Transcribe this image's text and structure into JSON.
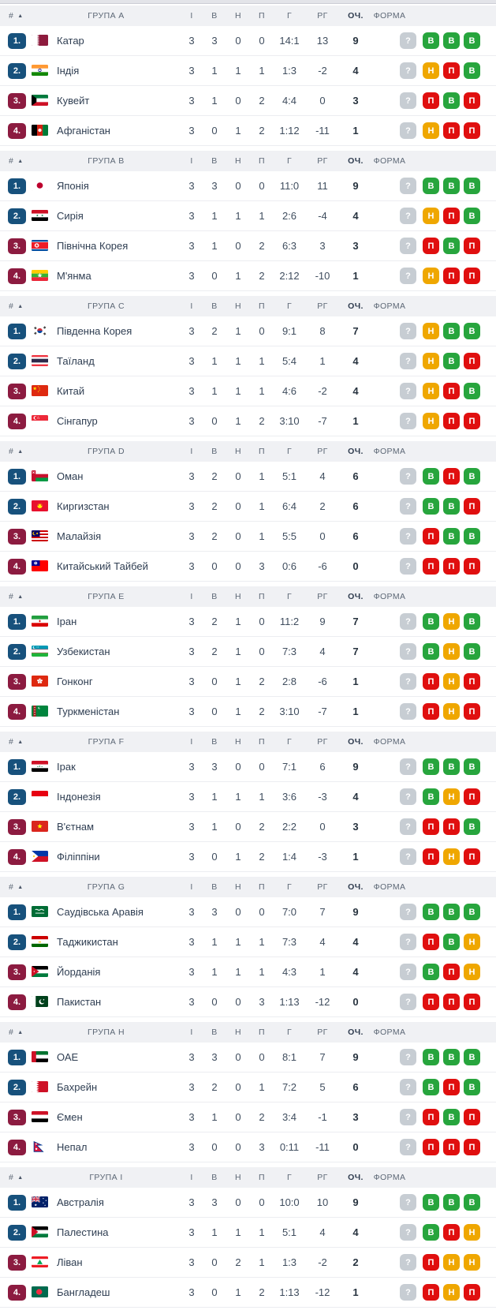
{
  "widget": {
    "type": "football-group-standings"
  },
  "columns": {
    "pos": "#",
    "sort_icon": "▲",
    "played": "І",
    "wins": "В",
    "draws": "Н",
    "losses": "П",
    "goals": "Г",
    "diff": "РГ",
    "points": "ОЧ.",
    "form": "ФОРМА"
  },
  "form_legend": {
    "win": "В",
    "draw": "Н",
    "loss": "П",
    "unknown": "?"
  },
  "colors": {
    "promotion": "#17517c",
    "relegation": "#8c1b40",
    "win": "#27a53d",
    "draw": "#efa700",
    "loss": "#e00f0f",
    "unknown": "#c7cdd3",
    "header_bg": "#f0f1f4",
    "row_border": "#ecedf1",
    "text_primary": "#2f3e52",
    "text_secondary": "#5d6876"
  },
  "groups": [
    {
      "label": "ГРУПА A",
      "teams": [
        {
          "pos": "1.",
          "zone": "promotion",
          "flag": "qatar",
          "name": "Катар",
          "played": "3",
          "wins": "3",
          "draws": "0",
          "losses": "0",
          "goals": "14:1",
          "diff": "13",
          "points": "9",
          "form": [
            "?",
            "В",
            "В",
            "В"
          ]
        },
        {
          "pos": "2.",
          "zone": "promotion",
          "flag": "india",
          "name": "Індія",
          "played": "3",
          "wins": "1",
          "draws": "1",
          "losses": "1",
          "goals": "1:3",
          "diff": "-2",
          "points": "4",
          "form": [
            "?",
            "Н",
            "П",
            "В"
          ]
        },
        {
          "pos": "3.",
          "zone": "relegation",
          "flag": "kuwait",
          "name": "Кувейт",
          "played": "3",
          "wins": "1",
          "draws": "0",
          "losses": "2",
          "goals": "4:4",
          "diff": "0",
          "points": "3",
          "form": [
            "?",
            "П",
            "В",
            "П"
          ]
        },
        {
          "pos": "4.",
          "zone": "relegation",
          "flag": "afghanistan",
          "name": "Афганістан",
          "played": "3",
          "wins": "0",
          "draws": "1",
          "losses": "2",
          "goals": "1:12",
          "diff": "-11",
          "points": "1",
          "form": [
            "?",
            "Н",
            "П",
            "П"
          ]
        }
      ]
    },
    {
      "label": "ГРУПА B",
      "teams": [
        {
          "pos": "1.",
          "zone": "promotion",
          "flag": "japan",
          "name": "Японія",
          "played": "3",
          "wins": "3",
          "draws": "0",
          "losses": "0",
          "goals": "11:0",
          "diff": "11",
          "points": "9",
          "form": [
            "?",
            "В",
            "В",
            "В"
          ]
        },
        {
          "pos": "2.",
          "zone": "promotion",
          "flag": "syria",
          "name": "Сирія",
          "played": "3",
          "wins": "1",
          "draws": "1",
          "losses": "1",
          "goals": "2:6",
          "diff": "-4",
          "points": "4",
          "form": [
            "?",
            "Н",
            "П",
            "В"
          ]
        },
        {
          "pos": "3.",
          "zone": "relegation",
          "flag": "northkorea",
          "name": "Північна Корея",
          "played": "3",
          "wins": "1",
          "draws": "0",
          "losses": "2",
          "goals": "6:3",
          "diff": "3",
          "points": "3",
          "form": [
            "?",
            "П",
            "В",
            "П"
          ]
        },
        {
          "pos": "4.",
          "zone": "relegation",
          "flag": "myanmar",
          "name": "М'янма",
          "played": "3",
          "wins": "0",
          "draws": "1",
          "losses": "2",
          "goals": "2:12",
          "diff": "-10",
          "points": "1",
          "form": [
            "?",
            "Н",
            "П",
            "П"
          ]
        }
      ]
    },
    {
      "label": "ГРУПА C",
      "teams": [
        {
          "pos": "1.",
          "zone": "promotion",
          "flag": "southkorea",
          "name": "Південна Корея",
          "played": "3",
          "wins": "2",
          "draws": "1",
          "losses": "0",
          "goals": "9:1",
          "diff": "8",
          "points": "7",
          "form": [
            "?",
            "Н",
            "В",
            "В"
          ]
        },
        {
          "pos": "2.",
          "zone": "promotion",
          "flag": "thailand",
          "name": "Таїланд",
          "played": "3",
          "wins": "1",
          "draws": "1",
          "losses": "1",
          "goals": "5:4",
          "diff": "1",
          "points": "4",
          "form": [
            "?",
            "Н",
            "В",
            "П"
          ]
        },
        {
          "pos": "3.",
          "zone": "relegation",
          "flag": "china",
          "name": "Китай",
          "played": "3",
          "wins": "1",
          "draws": "1",
          "losses": "1",
          "goals": "4:6",
          "diff": "-2",
          "points": "4",
          "form": [
            "?",
            "Н",
            "П",
            "В"
          ]
        },
        {
          "pos": "4.",
          "zone": "relegation",
          "flag": "singapore",
          "name": "Сінгапур",
          "played": "3",
          "wins": "0",
          "draws": "1",
          "losses": "2",
          "goals": "3:10",
          "diff": "-7",
          "points": "1",
          "form": [
            "?",
            "Н",
            "П",
            "П"
          ]
        }
      ]
    },
    {
      "label": "ГРУПА D",
      "teams": [
        {
          "pos": "1.",
          "zone": "promotion",
          "flag": "oman",
          "name": "Оман",
          "played": "3",
          "wins": "2",
          "draws": "0",
          "losses": "1",
          "goals": "5:1",
          "diff": "4",
          "points": "6",
          "form": [
            "?",
            "В",
            "П",
            "В"
          ]
        },
        {
          "pos": "2.",
          "zone": "promotion",
          "flag": "kyrgyzstan",
          "name": "Киргизстан",
          "played": "3",
          "wins": "2",
          "draws": "0",
          "losses": "1",
          "goals": "6:4",
          "diff": "2",
          "points": "6",
          "form": [
            "?",
            "В",
            "В",
            "П"
          ]
        },
        {
          "pos": "3.",
          "zone": "relegation",
          "flag": "malaysia",
          "name": "Малайзія",
          "played": "3",
          "wins": "2",
          "draws": "0",
          "losses": "1",
          "goals": "5:5",
          "diff": "0",
          "points": "6",
          "form": [
            "?",
            "П",
            "В",
            "В"
          ]
        },
        {
          "pos": "4.",
          "zone": "relegation",
          "flag": "taiwan",
          "name": "Китайський Тайбей",
          "played": "3",
          "wins": "0",
          "draws": "0",
          "losses": "3",
          "goals": "0:6",
          "diff": "-6",
          "points": "0",
          "form": [
            "?",
            "П",
            "П",
            "П"
          ]
        }
      ]
    },
    {
      "label": "ГРУПА E",
      "teams": [
        {
          "pos": "1.",
          "zone": "promotion",
          "flag": "iran",
          "name": "Іран",
          "played": "3",
          "wins": "2",
          "draws": "1",
          "losses": "0",
          "goals": "11:2",
          "diff": "9",
          "points": "7",
          "form": [
            "?",
            "В",
            "Н",
            "В"
          ]
        },
        {
          "pos": "2.",
          "zone": "promotion",
          "flag": "uzbekistan",
          "name": "Узбекистан",
          "played": "3",
          "wins": "2",
          "draws": "1",
          "losses": "0",
          "goals": "7:3",
          "diff": "4",
          "points": "7",
          "form": [
            "?",
            "В",
            "Н",
            "В"
          ]
        },
        {
          "pos": "3.",
          "zone": "relegation",
          "flag": "hongkong",
          "name": "Гонконг",
          "played": "3",
          "wins": "0",
          "draws": "1",
          "losses": "2",
          "goals": "2:8",
          "diff": "-6",
          "points": "1",
          "form": [
            "?",
            "П",
            "Н",
            "П"
          ]
        },
        {
          "pos": "4.",
          "zone": "relegation",
          "flag": "turkmenistan",
          "name": "Туркменістан",
          "played": "3",
          "wins": "0",
          "draws": "1",
          "losses": "2",
          "goals": "3:10",
          "diff": "-7",
          "points": "1",
          "form": [
            "?",
            "П",
            "Н",
            "П"
          ]
        }
      ]
    },
    {
      "label": "ГРУПА F",
      "teams": [
        {
          "pos": "1.",
          "zone": "promotion",
          "flag": "iraq",
          "name": "Ірак",
          "played": "3",
          "wins": "3",
          "draws": "0",
          "losses": "0",
          "goals": "7:1",
          "diff": "6",
          "points": "9",
          "form": [
            "?",
            "В",
            "В",
            "В"
          ]
        },
        {
          "pos": "2.",
          "zone": "promotion",
          "flag": "indonesia",
          "name": "Індонезія",
          "played": "3",
          "wins": "1",
          "draws": "1",
          "losses": "1",
          "goals": "3:6",
          "diff": "-3",
          "points": "4",
          "form": [
            "?",
            "В",
            "Н",
            "П"
          ]
        },
        {
          "pos": "3.",
          "zone": "relegation",
          "flag": "vietnam",
          "name": "В'єтнам",
          "played": "3",
          "wins": "1",
          "draws": "0",
          "losses": "2",
          "goals": "2:2",
          "diff": "0",
          "points": "3",
          "form": [
            "?",
            "П",
            "П",
            "В"
          ]
        },
        {
          "pos": "4.",
          "zone": "relegation",
          "flag": "philippines",
          "name": "Філіппіни",
          "played": "3",
          "wins": "0",
          "draws": "1",
          "losses": "2",
          "goals": "1:4",
          "diff": "-3",
          "points": "1",
          "form": [
            "?",
            "П",
            "Н",
            "П"
          ]
        }
      ]
    },
    {
      "label": "ГРУПА G",
      "teams": [
        {
          "pos": "1.",
          "zone": "promotion",
          "flag": "saudiarabia",
          "name": "Саудівська Аравія",
          "played": "3",
          "wins": "3",
          "draws": "0",
          "losses": "0",
          "goals": "7:0",
          "diff": "7",
          "points": "9",
          "form": [
            "?",
            "В",
            "В",
            "В"
          ]
        },
        {
          "pos": "2.",
          "zone": "promotion",
          "flag": "tajikistan",
          "name": "Таджикистан",
          "played": "3",
          "wins": "1",
          "draws": "1",
          "losses": "1",
          "goals": "7:3",
          "diff": "4",
          "points": "4",
          "form": [
            "?",
            "П",
            "В",
            "Н"
          ]
        },
        {
          "pos": "3.",
          "zone": "relegation",
          "flag": "jordan",
          "name": "Йорданія",
          "played": "3",
          "wins": "1",
          "draws": "1",
          "losses": "1",
          "goals": "4:3",
          "diff": "1",
          "points": "4",
          "form": [
            "?",
            "В",
            "П",
            "Н"
          ]
        },
        {
          "pos": "4.",
          "zone": "relegation",
          "flag": "pakistan",
          "name": "Пакистан",
          "played": "3",
          "wins": "0",
          "draws": "0",
          "losses": "3",
          "goals": "1:13",
          "diff": "-12",
          "points": "0",
          "form": [
            "?",
            "П",
            "П",
            "П"
          ]
        }
      ]
    },
    {
      "label": "ГРУПА H",
      "teams": [
        {
          "pos": "1.",
          "zone": "promotion",
          "flag": "uae",
          "name": "ОАЕ",
          "played": "3",
          "wins": "3",
          "draws": "0",
          "losses": "0",
          "goals": "8:1",
          "diff": "7",
          "points": "9",
          "form": [
            "?",
            "В",
            "В",
            "В"
          ]
        },
        {
          "pos": "2.",
          "zone": "promotion",
          "flag": "bahrain",
          "name": "Бахрейн",
          "played": "3",
          "wins": "2",
          "draws": "0",
          "losses": "1",
          "goals": "7:2",
          "diff": "5",
          "points": "6",
          "form": [
            "?",
            "В",
            "П",
            "В"
          ]
        },
        {
          "pos": "3.",
          "zone": "relegation",
          "flag": "yemen",
          "name": "Ємен",
          "played": "3",
          "wins": "1",
          "draws": "0",
          "losses": "2",
          "goals": "3:4",
          "diff": "-1",
          "points": "3",
          "form": [
            "?",
            "П",
            "В",
            "П"
          ]
        },
        {
          "pos": "4.",
          "zone": "relegation",
          "flag": "nepal",
          "name": "Непал",
          "played": "3",
          "wins": "0",
          "draws": "0",
          "losses": "3",
          "goals": "0:11",
          "diff": "-11",
          "points": "0",
          "form": [
            "?",
            "П",
            "П",
            "П"
          ]
        }
      ]
    },
    {
      "label": "ГРУПА I",
      "teams": [
        {
          "pos": "1.",
          "zone": "promotion",
          "flag": "australia",
          "name": "Австралія",
          "played": "3",
          "wins": "3",
          "draws": "0",
          "losses": "0",
          "goals": "10:0",
          "diff": "10",
          "points": "9",
          "form": [
            "?",
            "В",
            "В",
            "В"
          ]
        },
        {
          "pos": "2.",
          "zone": "promotion",
          "flag": "palestine",
          "name": "Палестина",
          "played": "3",
          "wins": "1",
          "draws": "1",
          "losses": "1",
          "goals": "5:1",
          "diff": "4",
          "points": "4",
          "form": [
            "?",
            "В",
            "П",
            "Н"
          ]
        },
        {
          "pos": "3.",
          "zone": "relegation",
          "flag": "lebanon",
          "name": "Ліван",
          "played": "3",
          "wins": "0",
          "draws": "2",
          "losses": "1",
          "goals": "1:3",
          "diff": "-2",
          "points": "2",
          "form": [
            "?",
            "П",
            "Н",
            "Н"
          ]
        },
        {
          "pos": "4.",
          "zone": "relegation",
          "flag": "bangladesh",
          "name": "Бангладеш",
          "played": "3",
          "wins": "0",
          "draws": "1",
          "losses": "2",
          "goals": "1:13",
          "diff": "-12",
          "points": "1",
          "form": [
            "?",
            "П",
            "Н",
            "П"
          ]
        }
      ]
    }
  ]
}
